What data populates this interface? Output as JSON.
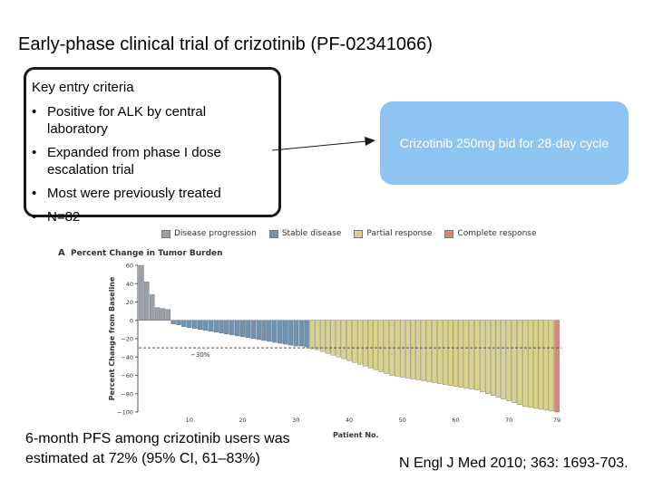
{
  "slide": {
    "title": "Early-phase  clinical trial of crizotinib (PF-02341066)",
    "criteria_heading": "Key entry criteria",
    "criteria": [
      "Positive for ALK by central laboratory",
      "Expanded from phase I dose escalation trial",
      "Most were previously treated",
      "N=82"
    ],
    "dose_text": "Crizotinib 250mg bid for 28-day cycle",
    "pfs_note": "6-month PFS among crizotinib users was estimated at 72% (95% CI, 61–83%)",
    "citation": "N Engl J Med 2010; 363: 1693-703."
  },
  "chart_data": {
    "type": "bar",
    "panel_label": "A",
    "title": "Percent Change in Tumor Burden",
    "xlabel": "Patient No.",
    "ylabel": "Percent Change from Baseline",
    "ylim": [
      -100,
      60
    ],
    "yticks": [
      60,
      40,
      20,
      0,
      -20,
      -40,
      -60,
      -80,
      -100
    ],
    "xticks": [
      10,
      20,
      30,
      40,
      50,
      60,
      70,
      79
    ],
    "reference_line": {
      "value": -30,
      "label": "−30%"
    },
    "legend": [
      {
        "name": "Disease progression",
        "color": "#9aa0a8"
      },
      {
        "name": "Stable disease",
        "color": "#6f93b2"
      },
      {
        "name": "Partial response",
        "color": "#d8d28a"
      },
      {
        "name": "Complete response",
        "color": "#d9867c"
      }
    ],
    "groups": [
      {
        "category": "Disease progression",
        "values": [
          60,
          42,
          28,
          14,
          13,
          12
        ]
      },
      {
        "category": "Stable disease",
        "values": [
          -4,
          -5,
          -7,
          -8,
          -9,
          -10,
          -11,
          -12,
          -13,
          -14,
          -15,
          -16,
          -17,
          -18,
          -19,
          -20,
          -21,
          -22,
          -23,
          -24,
          -25,
          -26,
          -27,
          -28,
          -28,
          -29
        ]
      },
      {
        "category": "Partial response",
        "values": [
          -31,
          -32,
          -34,
          -36,
          -38,
          -40,
          -42,
          -44,
          -46,
          -48,
          -50,
          -52,
          -54,
          -56,
          -58,
          -60,
          -61,
          -62,
          -63,
          -64,
          -65,
          -66,
          -67,
          -68,
          -69,
          -70,
          -71,
          -72,
          -73,
          -74,
          -75,
          -76,
          -78,
          -80,
          -82,
          -84,
          -86,
          -88,
          -90,
          -92,
          -94,
          -95,
          -96,
          -97,
          -98,
          -99
        ]
      },
      {
        "category": "Complete response",
        "values": [
          -100
        ]
      }
    ]
  }
}
